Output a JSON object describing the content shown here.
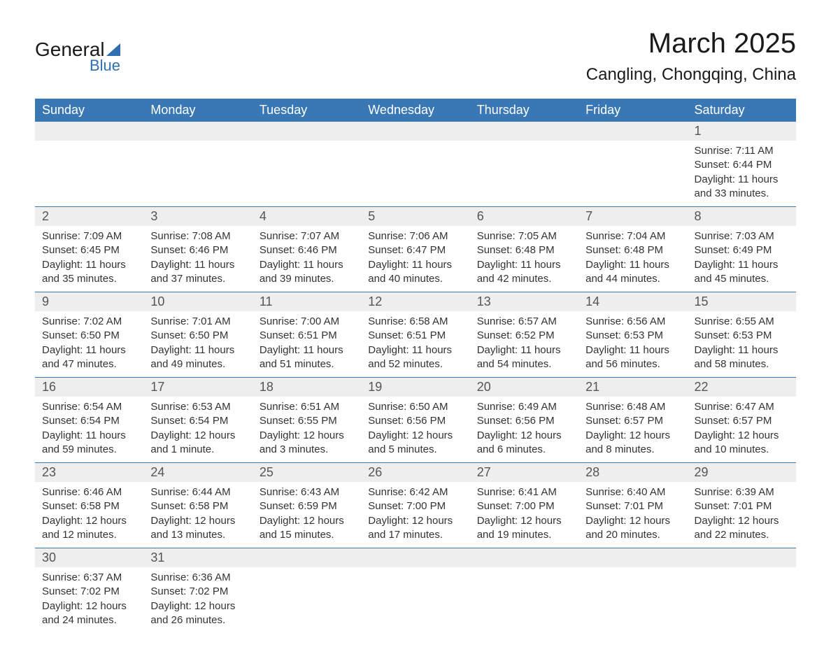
{
  "logo": {
    "word1": "General",
    "word2": "Blue",
    "triangle_color": "#2f6fb0"
  },
  "title": "March 2025",
  "location": "Cangling, Chongqing, China",
  "colors": {
    "header_bg": "#3a77b5",
    "header_text": "#ffffff",
    "daynum_bg": "#eeeeee",
    "daynum_text": "#555555",
    "week_border": "#3a77b5",
    "body_text": "#333333"
  },
  "weekdays": [
    "Sunday",
    "Monday",
    "Tuesday",
    "Wednesday",
    "Thursday",
    "Friday",
    "Saturday"
  ],
  "weeks": [
    [
      null,
      null,
      null,
      null,
      null,
      null,
      {
        "num": "1",
        "sunrise": "Sunrise: 7:11 AM",
        "sunset": "Sunset: 6:44 PM",
        "daylight1": "Daylight: 11 hours",
        "daylight2": "and 33 minutes."
      }
    ],
    [
      {
        "num": "2",
        "sunrise": "Sunrise: 7:09 AM",
        "sunset": "Sunset: 6:45 PM",
        "daylight1": "Daylight: 11 hours",
        "daylight2": "and 35 minutes."
      },
      {
        "num": "3",
        "sunrise": "Sunrise: 7:08 AM",
        "sunset": "Sunset: 6:46 PM",
        "daylight1": "Daylight: 11 hours",
        "daylight2": "and 37 minutes."
      },
      {
        "num": "4",
        "sunrise": "Sunrise: 7:07 AM",
        "sunset": "Sunset: 6:46 PM",
        "daylight1": "Daylight: 11 hours",
        "daylight2": "and 39 minutes."
      },
      {
        "num": "5",
        "sunrise": "Sunrise: 7:06 AM",
        "sunset": "Sunset: 6:47 PM",
        "daylight1": "Daylight: 11 hours",
        "daylight2": "and 40 minutes."
      },
      {
        "num": "6",
        "sunrise": "Sunrise: 7:05 AM",
        "sunset": "Sunset: 6:48 PM",
        "daylight1": "Daylight: 11 hours",
        "daylight2": "and 42 minutes."
      },
      {
        "num": "7",
        "sunrise": "Sunrise: 7:04 AM",
        "sunset": "Sunset: 6:48 PM",
        "daylight1": "Daylight: 11 hours",
        "daylight2": "and 44 minutes."
      },
      {
        "num": "8",
        "sunrise": "Sunrise: 7:03 AM",
        "sunset": "Sunset: 6:49 PM",
        "daylight1": "Daylight: 11 hours",
        "daylight2": "and 45 minutes."
      }
    ],
    [
      {
        "num": "9",
        "sunrise": "Sunrise: 7:02 AM",
        "sunset": "Sunset: 6:50 PM",
        "daylight1": "Daylight: 11 hours",
        "daylight2": "and 47 minutes."
      },
      {
        "num": "10",
        "sunrise": "Sunrise: 7:01 AM",
        "sunset": "Sunset: 6:50 PM",
        "daylight1": "Daylight: 11 hours",
        "daylight2": "and 49 minutes."
      },
      {
        "num": "11",
        "sunrise": "Sunrise: 7:00 AM",
        "sunset": "Sunset: 6:51 PM",
        "daylight1": "Daylight: 11 hours",
        "daylight2": "and 51 minutes."
      },
      {
        "num": "12",
        "sunrise": "Sunrise: 6:58 AM",
        "sunset": "Sunset: 6:51 PM",
        "daylight1": "Daylight: 11 hours",
        "daylight2": "and 52 minutes."
      },
      {
        "num": "13",
        "sunrise": "Sunrise: 6:57 AM",
        "sunset": "Sunset: 6:52 PM",
        "daylight1": "Daylight: 11 hours",
        "daylight2": "and 54 minutes."
      },
      {
        "num": "14",
        "sunrise": "Sunrise: 6:56 AM",
        "sunset": "Sunset: 6:53 PM",
        "daylight1": "Daylight: 11 hours",
        "daylight2": "and 56 minutes."
      },
      {
        "num": "15",
        "sunrise": "Sunrise: 6:55 AM",
        "sunset": "Sunset: 6:53 PM",
        "daylight1": "Daylight: 11 hours",
        "daylight2": "and 58 minutes."
      }
    ],
    [
      {
        "num": "16",
        "sunrise": "Sunrise: 6:54 AM",
        "sunset": "Sunset: 6:54 PM",
        "daylight1": "Daylight: 11 hours",
        "daylight2": "and 59 minutes."
      },
      {
        "num": "17",
        "sunrise": "Sunrise: 6:53 AM",
        "sunset": "Sunset: 6:54 PM",
        "daylight1": "Daylight: 12 hours",
        "daylight2": "and 1 minute."
      },
      {
        "num": "18",
        "sunrise": "Sunrise: 6:51 AM",
        "sunset": "Sunset: 6:55 PM",
        "daylight1": "Daylight: 12 hours",
        "daylight2": "and 3 minutes."
      },
      {
        "num": "19",
        "sunrise": "Sunrise: 6:50 AM",
        "sunset": "Sunset: 6:56 PM",
        "daylight1": "Daylight: 12 hours",
        "daylight2": "and 5 minutes."
      },
      {
        "num": "20",
        "sunrise": "Sunrise: 6:49 AM",
        "sunset": "Sunset: 6:56 PM",
        "daylight1": "Daylight: 12 hours",
        "daylight2": "and 6 minutes."
      },
      {
        "num": "21",
        "sunrise": "Sunrise: 6:48 AM",
        "sunset": "Sunset: 6:57 PM",
        "daylight1": "Daylight: 12 hours",
        "daylight2": "and 8 minutes."
      },
      {
        "num": "22",
        "sunrise": "Sunrise: 6:47 AM",
        "sunset": "Sunset: 6:57 PM",
        "daylight1": "Daylight: 12 hours",
        "daylight2": "and 10 minutes."
      }
    ],
    [
      {
        "num": "23",
        "sunrise": "Sunrise: 6:46 AM",
        "sunset": "Sunset: 6:58 PM",
        "daylight1": "Daylight: 12 hours",
        "daylight2": "and 12 minutes."
      },
      {
        "num": "24",
        "sunrise": "Sunrise: 6:44 AM",
        "sunset": "Sunset: 6:58 PM",
        "daylight1": "Daylight: 12 hours",
        "daylight2": "and 13 minutes."
      },
      {
        "num": "25",
        "sunrise": "Sunrise: 6:43 AM",
        "sunset": "Sunset: 6:59 PM",
        "daylight1": "Daylight: 12 hours",
        "daylight2": "and 15 minutes."
      },
      {
        "num": "26",
        "sunrise": "Sunrise: 6:42 AM",
        "sunset": "Sunset: 7:00 PM",
        "daylight1": "Daylight: 12 hours",
        "daylight2": "and 17 minutes."
      },
      {
        "num": "27",
        "sunrise": "Sunrise: 6:41 AM",
        "sunset": "Sunset: 7:00 PM",
        "daylight1": "Daylight: 12 hours",
        "daylight2": "and 19 minutes."
      },
      {
        "num": "28",
        "sunrise": "Sunrise: 6:40 AM",
        "sunset": "Sunset: 7:01 PM",
        "daylight1": "Daylight: 12 hours",
        "daylight2": "and 20 minutes."
      },
      {
        "num": "29",
        "sunrise": "Sunrise: 6:39 AM",
        "sunset": "Sunset: 7:01 PM",
        "daylight1": "Daylight: 12 hours",
        "daylight2": "and 22 minutes."
      }
    ],
    [
      {
        "num": "30",
        "sunrise": "Sunrise: 6:37 AM",
        "sunset": "Sunset: 7:02 PM",
        "daylight1": "Daylight: 12 hours",
        "daylight2": "and 24 minutes."
      },
      {
        "num": "31",
        "sunrise": "Sunrise: 6:36 AM",
        "sunset": "Sunset: 7:02 PM",
        "daylight1": "Daylight: 12 hours",
        "daylight2": "and 26 minutes."
      },
      null,
      null,
      null,
      null,
      null
    ]
  ]
}
